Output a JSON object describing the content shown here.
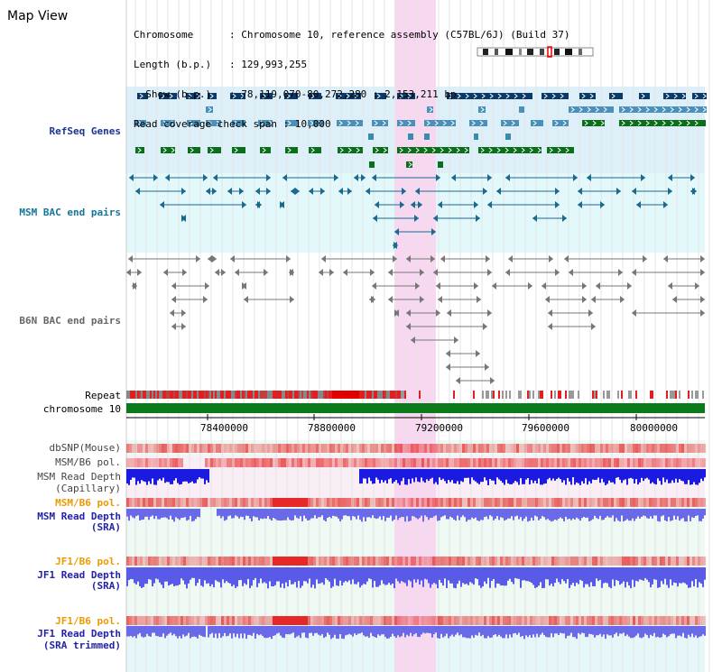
{
  "title": "Map View",
  "info": {
    "line1_key": "Chromosome",
    "line1_val": "Chromosome 10, reference assembly (C57BL/6J) (Build 37)",
    "line2_key": "Length (b.p.)",
    "line2_val": "129,993,255",
    "line3_key": "Show (b.p.)",
    "line3_val": "78,119,070-80,272,280 : 2,153,211 bp",
    "line4_key": "Read coverage check span",
    "line4_val": "10,000"
  },
  "tracks": {
    "refseq": "RefSeq Genes",
    "msm_bac": "MSM BAC end pairs",
    "b6n_bac": "B6N BAC end pairs",
    "repeat": "Repeat",
    "chromosome": "chromosome 10",
    "dbsnp": "dbSNP(Mouse)",
    "msm_b6_pol_1": "MSM/B6 pol.",
    "msm_read_depth_cap_1": "MSM Read Depth",
    "msm_read_depth_cap_2": "(Capillary)",
    "msm_b6_pol_2": "MSM/B6 pol.",
    "msm_read_depth_sra_1": "MSM Read Depth",
    "msm_read_depth_sra_2": "(SRA)",
    "jf1_pol_1": "JF1/B6 pol.",
    "jf1_read_depth_sra_1": "JF1 Read Depth",
    "jf1_read_depth_sra_2": "(SRA)",
    "jf1_pol_2": "JF1/B6 pol.",
    "jf1_read_depth_trim_1": "JF1 Read Depth",
    "jf1_read_depth_trim_2": "(SRA trimmed)"
  },
  "axis": {
    "ticks": [
      "78400000",
      "78800000",
      "79200000",
      "79600000",
      "80000000"
    ]
  },
  "colors": {
    "highlight": "#f8d8f0",
    "refseq_bg": "#ddf0fa",
    "bac_bg": "#e2f8fa",
    "gene_dark": "#0a3a6a",
    "gene_mid": "#4a90b8",
    "gene_green": "#0a6e1a",
    "depth_blue": "#2a2ae0",
    "depth_light": "#7a7aee",
    "chrom_green": "#0a7a1a"
  }
}
